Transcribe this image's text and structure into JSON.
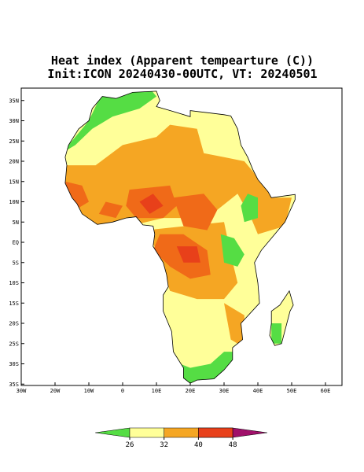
{
  "map": {
    "title": [
      "Heat index (Apparent tempearture (C))",
      "Init:ICON 20240430-00UTC, VT: 20240501"
    ],
    "xticks": [
      {
        "value": -30,
        "label": "30W"
      },
      {
        "value": -20,
        "label": "20W"
      },
      {
        "value": -10,
        "label": "10W"
      },
      0,
      {
        "value": 10,
        "label": "10E"
      },
      {
        "value": 20,
        "label": "20E"
      },
      {
        "value": 30,
        "label": "30E"
      },
      {
        "value": 40,
        "label": "40E"
      },
      {
        "value": 50,
        "label": "50E"
      },
      {
        "value": 60,
        "label": "60E"
      }
    ],
    "yticks": [
      {
        "value": 35,
        "label": "35N"
      },
      {
        "value": 30,
        "label": "30N"
      },
      {
        "value": 25,
        "label": "25N"
      },
      {
        "value": 20,
        "label": "20N"
      },
      {
        "value": 15,
        "label": "15N"
      },
      {
        "value": 10,
        "label": "10N"
      },
      {
        "value": 5,
        "label": "5N"
      },
      {
        "value": 0,
        "label": "EQ"
      },
      {
        "value": -5,
        "label": "5S"
      },
      {
        "value": -10,
        "label": "10S"
      },
      {
        "value": -15,
        "label": "15S"
      },
      {
        "value": -20,
        "label": "20S"
      },
      {
        "value": -25,
        "label": "25S"
      },
      {
        "value": -30,
        "label": "30S"
      },
      {
        "value": -35,
        "label": "35S"
      }
    ],
    "colorbar": {
      "levels": [
        26,
        32,
        40,
        48
      ],
      "colors": [
        "#55dd44",
        "#ffff99",
        "#f5a623",
        "#f06a18",
        "#e8401a",
        "#a0106a"
      ]
    }
  }
}
